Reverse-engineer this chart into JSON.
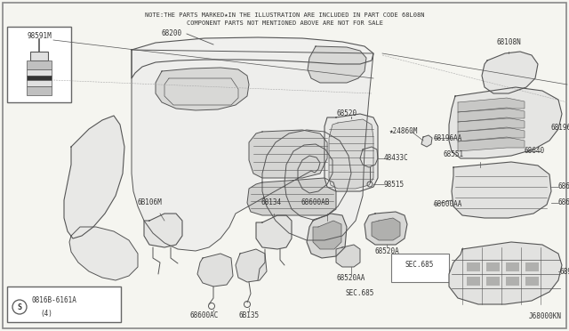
{
  "bg_color": "#f5f5f0",
  "border_color": "#888888",
  "note_line1": "NOTE:THE PARTS MARKED★IN THE ILLUSTRATION ARE INCLUDED IN PART CODE 68L08N",
  "note_line2": "COMPONENT PARTS NOT MENTIONED ABOVE ARE NOT FOR SALE",
  "diagram_code": "J68000KN",
  "part_number_box": "0816B-6161A",
  "part_number_sub": "(4)",
  "inset_part": "98591M",
  "lc": "#555555",
  "tc": "#333333",
  "fs": 5.5
}
